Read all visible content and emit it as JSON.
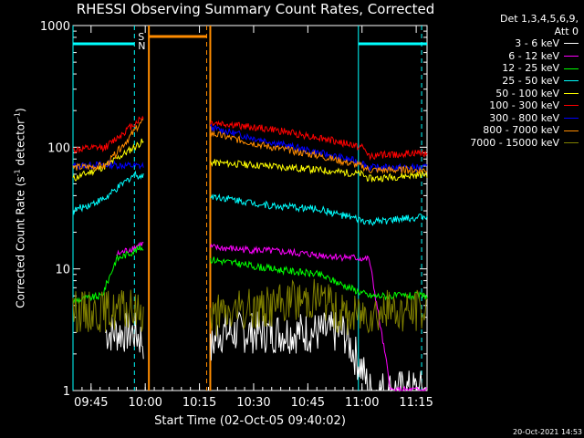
{
  "chart_data": {
    "type": "line",
    "title": "RHESSI Observing Summary Count Rates, Corrected",
    "xlabel": "Start Time (02-Oct-05 09:40:02)",
    "ylabel": "Corrected Count Rate (s",
    "ylabel_sup": "-1",
    "ylabel_tail": " detector",
    "ylabel_tail_sup": "-1",
    "ylabel_close": ")",
    "yscale": "log",
    "ylim": [
      1,
      1000
    ],
    "xlim_min": [
      0,
      98
    ],
    "yticks": [
      {
        "v": 1,
        "label": "1"
      },
      {
        "v": 10,
        "label": "10"
      },
      {
        "v": 100,
        "label": "100"
      },
      {
        "v": 1000,
        "label": "1000"
      }
    ],
    "xticks": [
      {
        "min": 5,
        "label": "09:45"
      },
      {
        "min": 20,
        "label": "10:00"
      },
      {
        "min": 35,
        "label": "10:15"
      },
      {
        "min": 50,
        "label": "10:30"
      },
      {
        "min": 65,
        "label": "10:45"
      },
      {
        "min": 80,
        "label": "11:00"
      },
      {
        "min": 95,
        "label": "11:15"
      }
    ],
    "legend_header": [
      "Det 1,3,4,5,6,9,",
      "Att 0"
    ],
    "series": [
      {
        "name": "3 - 6 keV",
        "color": "#ffffff",
        "points": [
          [
            9,
            3
          ],
          [
            17,
            3
          ],
          [
            34,
            1
          ],
          [
            40,
            3
          ],
          [
            52,
            3
          ],
          [
            66,
            3
          ],
          [
            75,
            3
          ],
          [
            80,
            1.5
          ],
          [
            82,
            1
          ],
          [
            98,
            1
          ]
        ]
      },
      {
        "name": "6 - 12 keV",
        "color": "#ff00ff",
        "points": [
          [
            0,
            0
          ],
          [
            12,
            13
          ],
          [
            19,
            16
          ],
          [
            38,
            15
          ],
          [
            55,
            14
          ],
          [
            68,
            13
          ],
          [
            82,
            12
          ],
          [
            88,
            1
          ],
          [
            98,
            1
          ]
        ]
      },
      {
        "name": "12 - 25 keV",
        "color": "#00ff00",
        "points": [
          [
            0,
            5.5
          ],
          [
            8,
            6
          ],
          [
            12,
            12
          ],
          [
            19,
            15
          ],
          [
            38,
            12
          ],
          [
            55,
            10
          ],
          [
            68,
            9
          ],
          [
            82,
            6
          ],
          [
            98,
            6
          ]
        ]
      },
      {
        "name": "25 - 50 keV",
        "color": "#00ffff",
        "points": [
          [
            0,
            30
          ],
          [
            9,
            38
          ],
          [
            17,
            60
          ],
          [
            38,
            40
          ],
          [
            55,
            33
          ],
          [
            68,
            31
          ],
          [
            82,
            24
          ],
          [
            98,
            27
          ]
        ]
      },
      {
        "name": "50 - 100 keV",
        "color": "#ffff00",
        "points": [
          [
            0,
            55
          ],
          [
            9,
            70
          ],
          [
            19,
            110
          ],
          [
            38,
            75
          ],
          [
            55,
            70
          ],
          [
            68,
            65
          ],
          [
            80,
            60
          ],
          [
            82,
            55
          ],
          [
            98,
            60
          ]
        ]
      },
      {
        "name": "100 - 300 keV",
        "color": "#ff0000",
        "points": [
          [
            0,
            95
          ],
          [
            9,
            100
          ],
          [
            19,
            175
          ],
          [
            38,
            160
          ],
          [
            55,
            140
          ],
          [
            68,
            120
          ],
          [
            80,
            100
          ],
          [
            82,
            85
          ],
          [
            98,
            90
          ]
        ]
      },
      {
        "name": "300 - 800 keV",
        "color": "#0000ff",
        "points": [
          [
            0,
            70
          ],
          [
            9,
            72
          ],
          [
            19,
            70
          ],
          [
            38,
            145
          ],
          [
            55,
            110
          ],
          [
            68,
            90
          ],
          [
            80,
            75
          ],
          [
            82,
            68
          ],
          [
            98,
            68
          ]
        ]
      },
      {
        "name": "800 - 7000 keV",
        "color": "#ff8c00",
        "points": [
          [
            0,
            68
          ],
          [
            9,
            70
          ],
          [
            19,
            160
          ],
          [
            38,
            130
          ],
          [
            55,
            100
          ],
          [
            68,
            85
          ],
          [
            80,
            70
          ],
          [
            82,
            65
          ],
          [
            98,
            65
          ]
        ]
      },
      {
        "name": "7000 - 15000 keV",
        "color": "#808000",
        "points": [
          [
            0,
            4.5
          ],
          [
            12,
            4.5
          ],
          [
            19,
            4.5
          ],
          [
            38,
            4
          ],
          [
            55,
            5
          ],
          [
            68,
            6
          ],
          [
            75,
            4
          ],
          [
            82,
            4.5
          ],
          [
            98,
            4.5
          ]
        ]
      }
    ],
    "annotations": [
      {
        "text": "S",
        "color": "#ff8c00"
      },
      {
        "text": "N",
        "color": "#00ffff"
      }
    ],
    "timestamp": "20-Oct-2021 14:53"
  },
  "colors": {
    "background": "#000000",
    "axis": "#ffffff"
  }
}
